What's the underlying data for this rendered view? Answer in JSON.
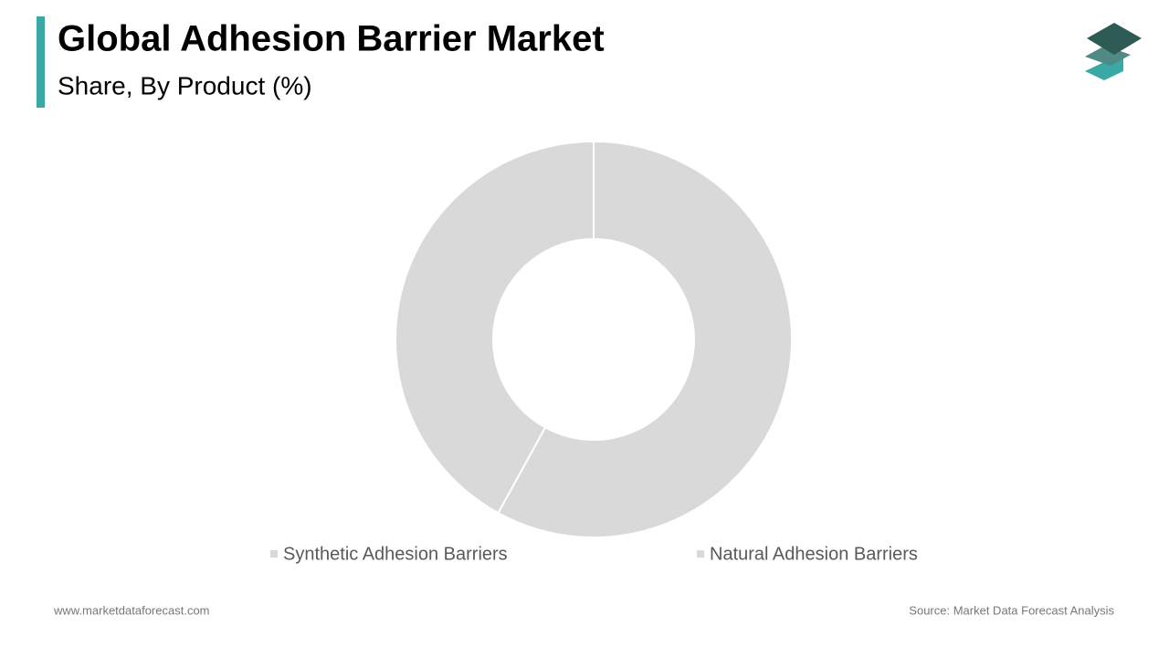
{
  "chart_data": {
    "type": "donut",
    "title": "Global Adhesion Barrier Market",
    "subtitle": "Share, By Product (%)",
    "categories": [
      "Synthetic Adhesion Barriers",
      "Natural Adhesion Barriers"
    ],
    "values": [
      58,
      42
    ],
    "colors": [
      "#d9d9d9",
      "#d9d9d9"
    ]
  },
  "footer": {
    "website": "www.marketdataforecast.com",
    "source": "Source: Market Data Forecast Analysis"
  }
}
